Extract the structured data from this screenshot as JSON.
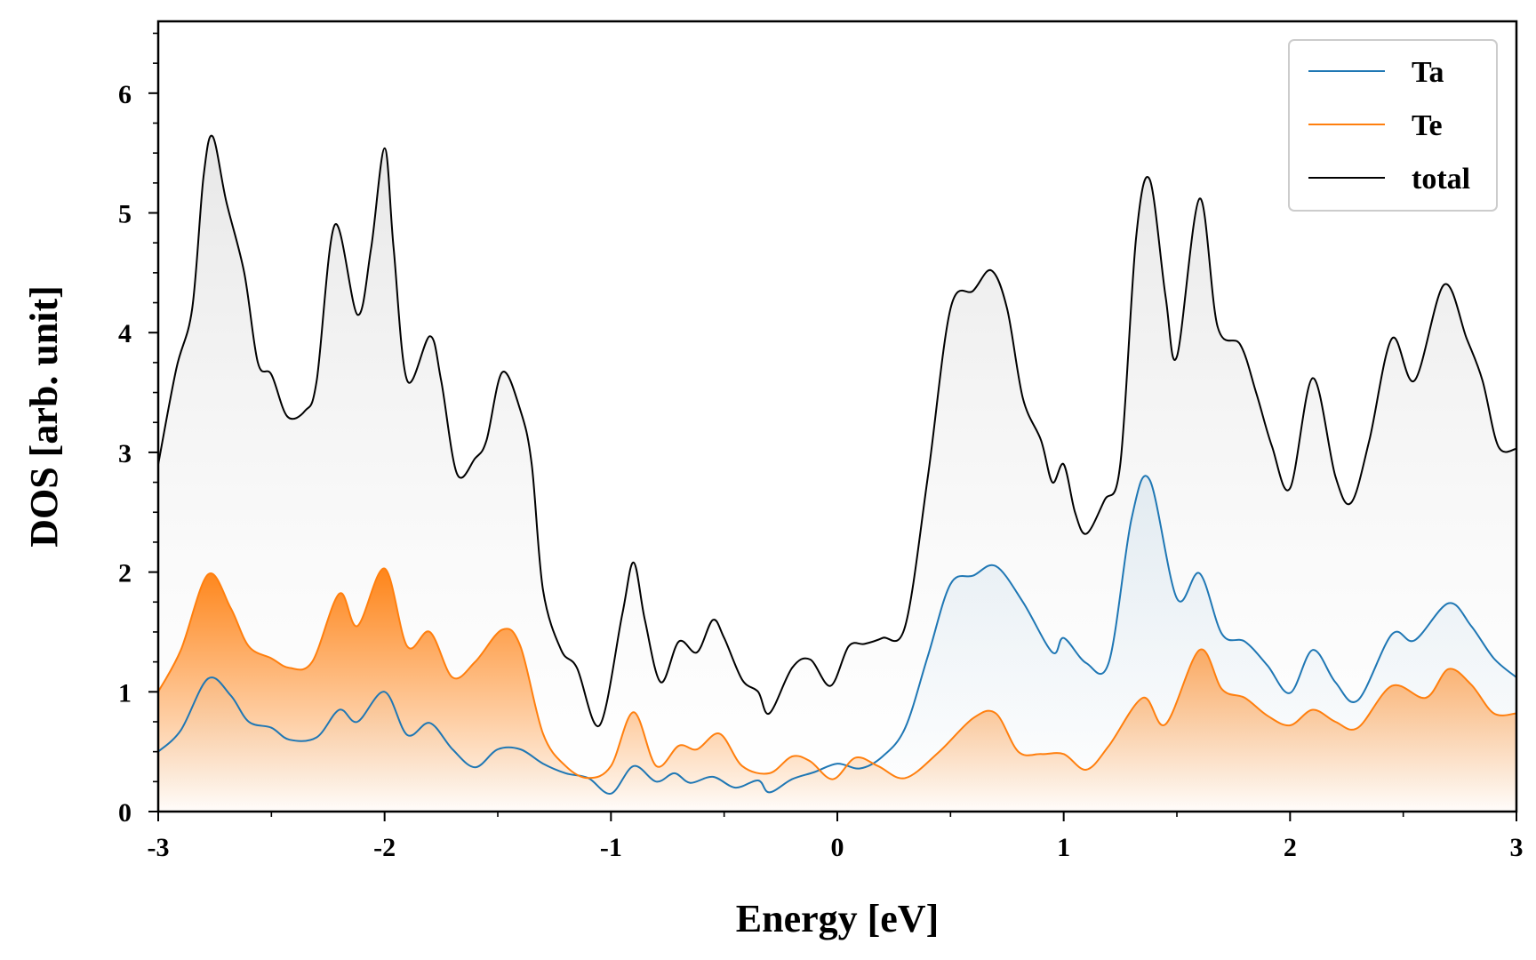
{
  "chart_data": {
    "type": "area",
    "title": "",
    "xlabel": "Energy [eV]",
    "ylabel": "DOS [arb. unit]",
    "xlim": [
      -3,
      3
    ],
    "ylim": [
      0,
      6.6
    ],
    "xticks": [
      "-3",
      "-2",
      "-1",
      "0",
      "1",
      "2",
      "3"
    ],
    "yticks": [
      "0",
      "1",
      "2",
      "3",
      "4",
      "5",
      "6"
    ],
    "legend": {
      "position": "top-right"
    },
    "grid": false,
    "series": [
      {
        "name": "Ta",
        "color": "#1f77b4",
        "points": [
          [
            -3.0,
            0.5
          ],
          [
            -2.9,
            0.68
          ],
          [
            -2.78,
            1.11
          ],
          [
            -2.68,
            0.97
          ],
          [
            -2.6,
            0.75
          ],
          [
            -2.5,
            0.7
          ],
          [
            -2.42,
            0.6
          ],
          [
            -2.3,
            0.62
          ],
          [
            -2.2,
            0.85
          ],
          [
            -2.12,
            0.75
          ],
          [
            -2.0,
            1.0
          ],
          [
            -1.9,
            0.64
          ],
          [
            -1.8,
            0.74
          ],
          [
            -1.7,
            0.52
          ],
          [
            -1.6,
            0.37
          ],
          [
            -1.5,
            0.52
          ],
          [
            -1.4,
            0.52
          ],
          [
            -1.3,
            0.4
          ],
          [
            -1.2,
            0.32
          ],
          [
            -1.1,
            0.28
          ],
          [
            -1.0,
            0.15
          ],
          [
            -0.9,
            0.38
          ],
          [
            -0.8,
            0.25
          ],
          [
            -0.72,
            0.32
          ],
          [
            -0.65,
            0.24
          ],
          [
            -0.55,
            0.29
          ],
          [
            -0.45,
            0.2
          ],
          [
            -0.35,
            0.26
          ],
          [
            -0.3,
            0.16
          ],
          [
            -0.2,
            0.27
          ],
          [
            -0.1,
            0.33
          ],
          [
            0.0,
            0.4
          ],
          [
            0.1,
            0.36
          ],
          [
            0.2,
            0.46
          ],
          [
            0.3,
            0.7
          ],
          [
            0.4,
            1.3
          ],
          [
            0.5,
            1.9
          ],
          [
            0.6,
            1.97
          ],
          [
            0.7,
            2.05
          ],
          [
            0.82,
            1.75
          ],
          [
            0.95,
            1.33
          ],
          [
            1.0,
            1.45
          ],
          [
            1.1,
            1.24
          ],
          [
            1.2,
            1.25
          ],
          [
            1.3,
            2.45
          ],
          [
            1.38,
            2.77
          ],
          [
            1.5,
            1.78
          ],
          [
            1.6,
            1.99
          ],
          [
            1.7,
            1.48
          ],
          [
            1.8,
            1.42
          ],
          [
            1.9,
            1.22
          ],
          [
            2.0,
            0.99
          ],
          [
            2.1,
            1.35
          ],
          [
            2.2,
            1.08
          ],
          [
            2.3,
            0.93
          ],
          [
            2.45,
            1.48
          ],
          [
            2.55,
            1.43
          ],
          [
            2.7,
            1.74
          ],
          [
            2.8,
            1.55
          ],
          [
            2.9,
            1.28
          ],
          [
            3.0,
            1.12
          ]
        ]
      },
      {
        "name": "Te",
        "color": "#ff7f0e",
        "points": [
          [
            -3.0,
            1.0
          ],
          [
            -2.9,
            1.35
          ],
          [
            -2.78,
            1.98
          ],
          [
            -2.68,
            1.7
          ],
          [
            -2.6,
            1.38
          ],
          [
            -2.5,
            1.28
          ],
          [
            -2.42,
            1.2
          ],
          [
            -2.32,
            1.25
          ],
          [
            -2.2,
            1.82
          ],
          [
            -2.12,
            1.55
          ],
          [
            -2.0,
            2.03
          ],
          [
            -1.9,
            1.38
          ],
          [
            -1.8,
            1.5
          ],
          [
            -1.7,
            1.12
          ],
          [
            -1.6,
            1.25
          ],
          [
            -1.48,
            1.52
          ],
          [
            -1.4,
            1.38
          ],
          [
            -1.3,
            0.65
          ],
          [
            -1.2,
            0.38
          ],
          [
            -1.1,
            0.28
          ],
          [
            -1.0,
            0.38
          ],
          [
            -0.9,
            0.83
          ],
          [
            -0.8,
            0.38
          ],
          [
            -0.7,
            0.55
          ],
          [
            -0.62,
            0.52
          ],
          [
            -0.52,
            0.65
          ],
          [
            -0.42,
            0.38
          ],
          [
            -0.3,
            0.32
          ],
          [
            -0.2,
            0.46
          ],
          [
            -0.12,
            0.42
          ],
          [
            -0.02,
            0.27
          ],
          [
            0.08,
            0.45
          ],
          [
            0.18,
            0.38
          ],
          [
            0.3,
            0.28
          ],
          [
            0.45,
            0.5
          ],
          [
            0.6,
            0.78
          ],
          [
            0.7,
            0.82
          ],
          [
            0.8,
            0.5
          ],
          [
            0.9,
            0.48
          ],
          [
            1.0,
            0.48
          ],
          [
            1.1,
            0.35
          ],
          [
            1.2,
            0.55
          ],
          [
            1.35,
            0.95
          ],
          [
            1.45,
            0.73
          ],
          [
            1.6,
            1.35
          ],
          [
            1.7,
            1.02
          ],
          [
            1.8,
            0.95
          ],
          [
            1.9,
            0.8
          ],
          [
            2.0,
            0.72
          ],
          [
            2.1,
            0.85
          ],
          [
            2.2,
            0.75
          ],
          [
            2.3,
            0.7
          ],
          [
            2.45,
            1.05
          ],
          [
            2.6,
            0.95
          ],
          [
            2.7,
            1.19
          ],
          [
            2.8,
            1.06
          ],
          [
            2.9,
            0.82
          ],
          [
            3.0,
            0.82
          ]
        ]
      },
      {
        "name": "total",
        "color": "#000000",
        "points": [
          [
            -3.0,
            2.9
          ],
          [
            -2.92,
            3.7
          ],
          [
            -2.85,
            4.2
          ],
          [
            -2.8,
            5.3
          ],
          [
            -2.76,
            5.64
          ],
          [
            -2.7,
            5.1
          ],
          [
            -2.62,
            4.5
          ],
          [
            -2.56,
            3.75
          ],
          [
            -2.5,
            3.65
          ],
          [
            -2.43,
            3.3
          ],
          [
            -2.35,
            3.35
          ],
          [
            -2.3,
            3.6
          ],
          [
            -2.22,
            4.9
          ],
          [
            -2.12,
            4.15
          ],
          [
            -2.06,
            4.7
          ],
          [
            -2.0,
            5.54
          ],
          [
            -1.96,
            4.7
          ],
          [
            -1.9,
            3.6
          ],
          [
            -1.8,
            3.97
          ],
          [
            -1.75,
            3.6
          ],
          [
            -1.68,
            2.82
          ],
          [
            -1.6,
            2.95
          ],
          [
            -1.55,
            3.1
          ],
          [
            -1.48,
            3.67
          ],
          [
            -1.4,
            3.35
          ],
          [
            -1.35,
            2.9
          ],
          [
            -1.3,
            1.85
          ],
          [
            -1.22,
            1.35
          ],
          [
            -1.15,
            1.2
          ],
          [
            -1.05,
            0.72
          ],
          [
            -0.95,
            1.65
          ],
          [
            -0.9,
            2.08
          ],
          [
            -0.85,
            1.6
          ],
          [
            -0.78,
            1.08
          ],
          [
            -0.7,
            1.42
          ],
          [
            -0.62,
            1.33
          ],
          [
            -0.55,
            1.6
          ],
          [
            -0.5,
            1.45
          ],
          [
            -0.42,
            1.1
          ],
          [
            -0.35,
            1.0
          ],
          [
            -0.3,
            0.82
          ],
          [
            -0.2,
            1.2
          ],
          [
            -0.12,
            1.27
          ],
          [
            -0.03,
            1.05
          ],
          [
            0.05,
            1.38
          ],
          [
            0.12,
            1.4
          ],
          [
            0.2,
            1.45
          ],
          [
            0.3,
            1.55
          ],
          [
            0.4,
            2.8
          ],
          [
            0.5,
            4.2
          ],
          [
            0.6,
            4.35
          ],
          [
            0.68,
            4.52
          ],
          [
            0.75,
            4.2
          ],
          [
            0.82,
            3.45
          ],
          [
            0.9,
            3.1
          ],
          [
            0.95,
            2.75
          ],
          [
            1.0,
            2.9
          ],
          [
            1.05,
            2.5
          ],
          [
            1.1,
            2.32
          ],
          [
            1.18,
            2.6
          ],
          [
            1.25,
            2.9
          ],
          [
            1.32,
            4.8
          ],
          [
            1.38,
            5.28
          ],
          [
            1.45,
            4.3
          ],
          [
            1.5,
            3.8
          ],
          [
            1.6,
            5.12
          ],
          [
            1.68,
            4.05
          ],
          [
            1.78,
            3.9
          ],
          [
            1.85,
            3.5
          ],
          [
            1.92,
            3.05
          ],
          [
            2.0,
            2.7
          ],
          [
            2.1,
            3.62
          ],
          [
            2.2,
            2.8
          ],
          [
            2.27,
            2.58
          ],
          [
            2.35,
            3.1
          ],
          [
            2.45,
            3.95
          ],
          [
            2.55,
            3.6
          ],
          [
            2.68,
            4.4
          ],
          [
            2.78,
            3.95
          ],
          [
            2.85,
            3.6
          ],
          [
            2.92,
            3.05
          ],
          [
            3.0,
            3.03
          ]
        ]
      }
    ]
  }
}
